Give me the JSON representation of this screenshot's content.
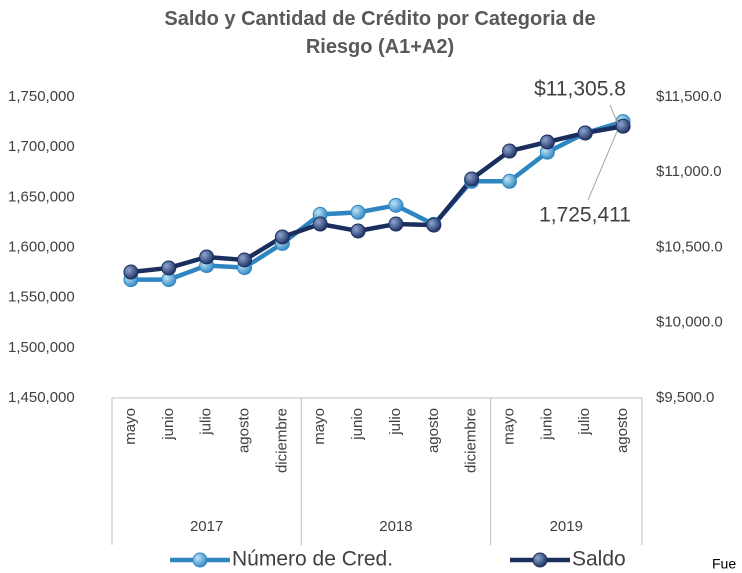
{
  "chart_data": {
    "type": "line",
    "title": "Saldo y Cantidad de Crédito por Categoria de Riesgo (A1+A2)",
    "groups": [
      {
        "label": "2017",
        "categories": [
          "mayo",
          "junio",
          "julio",
          "agosto",
          "diciembre"
        ]
      },
      {
        "label": "2018",
        "categories": [
          "mayo",
          "junio",
          "julio",
          "agosto",
          "diciembre"
        ]
      },
      {
        "label": "2019",
        "categories": [
          "mayo",
          "junio",
          "julio",
          "agosto"
        ]
      }
    ],
    "series": [
      {
        "name": "Número de Cred.",
        "color": "#2e86c1",
        "axis": "y",
        "values": [
          1568000,
          1568000,
          1582000,
          1580000,
          1604000,
          1633000,
          1635000,
          1642000,
          1623000,
          1666000,
          1666000,
          1695000,
          1714000,
          1725411
        ],
        "value_labels": [
          null,
          null,
          null,
          null,
          null,
          null,
          null,
          null,
          null,
          null,
          null,
          null,
          null,
          "1,725,411"
        ]
      },
      {
        "name": "Saldo",
        "color": "#1b2f5e",
        "axis": "y2",
        "values": [
          10337,
          10364,
          10437,
          10417,
          10570,
          10656,
          10610,
          10656,
          10649,
          10955,
          11141,
          11201,
          11261,
          11305.8
        ],
        "value_labels": [
          null,
          null,
          null,
          null,
          null,
          null,
          null,
          null,
          null,
          null,
          null,
          null,
          null,
          "$11,305.8"
        ]
      }
    ],
    "ylim": [
      1450000,
      1750000
    ],
    "yticks": [
      {
        "value": 1450000,
        "label": "1,450,000"
      },
      {
        "value": 1500000,
        "label": "1,500,000"
      },
      {
        "value": 1550000,
        "label": "1,550,000"
      },
      {
        "value": 1600000,
        "label": "1,600,000"
      },
      {
        "value": 1650000,
        "label": "1,650,000"
      },
      {
        "value": 1700000,
        "label": "1,700,000"
      },
      {
        "value": 1750000,
        "label": "1,750,000"
      }
    ],
    "y2lim": [
      9500,
      11500
    ],
    "y2ticks": [
      {
        "value": 9500,
        "label": "$9,500.0"
      },
      {
        "value": 10000,
        "label": "$10,000.0"
      },
      {
        "value": 10500,
        "label": "$10,500.0"
      },
      {
        "value": 11000,
        "label": "$11,000.0"
      },
      {
        "value": 11500,
        "label": "$11,500.0"
      }
    ],
    "legend": "bottom",
    "source": "Fue"
  }
}
